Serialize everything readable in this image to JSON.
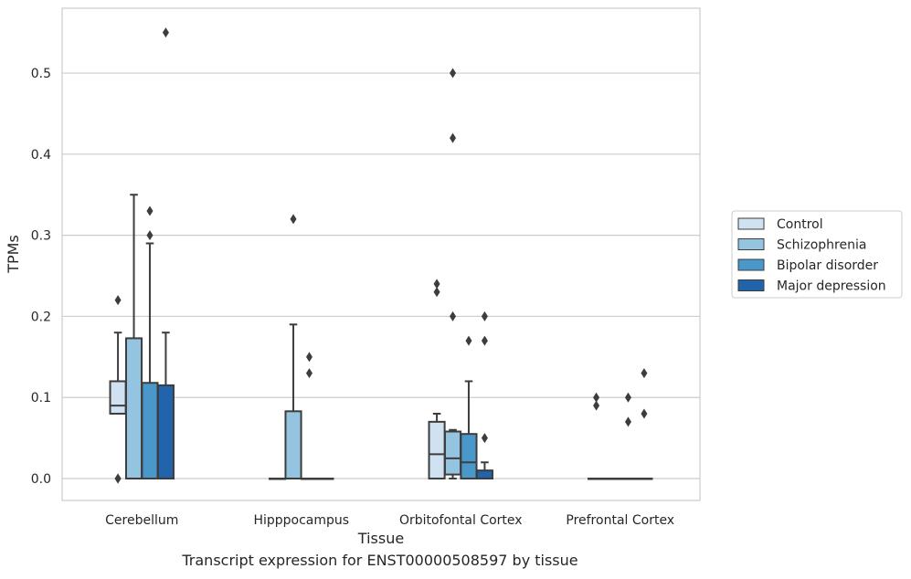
{
  "caption": "Transcript expression for ENST00000508597 by tissue",
  "chart_data": {
    "type": "box",
    "xlabel": "Tissue",
    "ylabel": "TPMs",
    "ylim": [
      -0.027,
      0.58
    ],
    "yticks": [
      0.0,
      0.1,
      0.2,
      0.3,
      0.4,
      0.5
    ],
    "ytick_labels": [
      "0.0",
      "0.1",
      "0.2",
      "0.3",
      "0.4",
      "0.5"
    ],
    "grid": "horizontal",
    "legend_position": "right",
    "categories": [
      "Cerebellum",
      "Hipppocampus",
      "Orbitofontal Cortex",
      "Prefrontal Cortex"
    ],
    "series": [
      {
        "name": "Control",
        "color": "#d0e1f2",
        "boxes": [
          {
            "whisker_low": 0.08,
            "q1": 0.08,
            "median": 0.09,
            "q3": 0.12,
            "whisker_high": 0.18,
            "outliers": [
              0.22,
              0.0,
              0.0
            ]
          },
          {
            "whisker_low": 0.0,
            "q1": 0.0,
            "median": 0.0,
            "q3": 0.0,
            "whisker_high": 0.0,
            "outliers": []
          },
          {
            "whisker_low": 0.0,
            "q1": 0.0,
            "median": 0.03,
            "q3": 0.07,
            "whisker_high": 0.08,
            "outliers": [
              0.24,
              0.23
            ]
          },
          {
            "whisker_low": 0.0,
            "q1": 0.0,
            "median": 0.0,
            "q3": 0.0,
            "whisker_high": 0.0,
            "outliers": [
              0.1,
              0.09
            ]
          }
        ]
      },
      {
        "name": "Schizophrenia",
        "color": "#94c4df",
        "boxes": [
          {
            "whisker_low": 0.0,
            "q1": 0.0,
            "median": 0.0,
            "q3": 0.173,
            "whisker_high": 0.35,
            "outliers": []
          },
          {
            "whisker_low": 0.0,
            "q1": 0.0,
            "median": 0.0,
            "q3": 0.083,
            "whisker_high": 0.19,
            "outliers": [
              0.32
            ]
          },
          {
            "whisker_low": 0.0,
            "q1": 0.005,
            "median": 0.025,
            "q3": 0.058,
            "whisker_high": 0.06,
            "outliers": [
              0.5,
              0.42,
              0.2
            ]
          },
          {
            "whisker_low": 0.0,
            "q1": 0.0,
            "median": 0.0,
            "q3": 0.0,
            "whisker_high": 0.0,
            "outliers": []
          }
        ]
      },
      {
        "name": "Bipolar disorder",
        "color": "#4a98c9",
        "boxes": [
          {
            "whisker_low": 0.0,
            "q1": 0.0,
            "median": 0.0,
            "q3": 0.118,
            "whisker_high": 0.29,
            "outliers": [
              0.33,
              0.3
            ]
          },
          {
            "whisker_low": 0.0,
            "q1": 0.0,
            "median": 0.0,
            "q3": 0.0,
            "whisker_high": 0.0,
            "outliers": [
              0.15,
              0.13
            ]
          },
          {
            "whisker_low": 0.0,
            "q1": 0.0,
            "median": 0.02,
            "q3": 0.055,
            "whisker_high": 0.12,
            "outliers": [
              0.17
            ]
          },
          {
            "whisker_low": 0.0,
            "q1": 0.0,
            "median": 0.0,
            "q3": 0.0,
            "whisker_high": 0.0,
            "outliers": [
              0.1,
              0.07
            ]
          }
        ]
      },
      {
        "name": "Major depression",
        "color": "#2164ab",
        "boxes": [
          {
            "whisker_low": 0.0,
            "q1": 0.0,
            "median": 0.0,
            "q3": 0.115,
            "whisker_high": 0.18,
            "outliers": [
              0.55
            ]
          },
          {
            "whisker_low": 0.0,
            "q1": 0.0,
            "median": 0.0,
            "q3": 0.0,
            "whisker_high": 0.0,
            "outliers": []
          },
          {
            "whisker_low": 0.0,
            "q1": 0.0,
            "median": 0.0,
            "q3": 0.01,
            "whisker_high": 0.02,
            "outliers": [
              0.2,
              0.17,
              0.05
            ]
          },
          {
            "whisker_low": 0.0,
            "q1": 0.0,
            "median": 0.0,
            "q3": 0.0,
            "whisker_high": 0.0,
            "outliers": [
              0.13,
              0.08
            ]
          }
        ]
      }
    ]
  }
}
